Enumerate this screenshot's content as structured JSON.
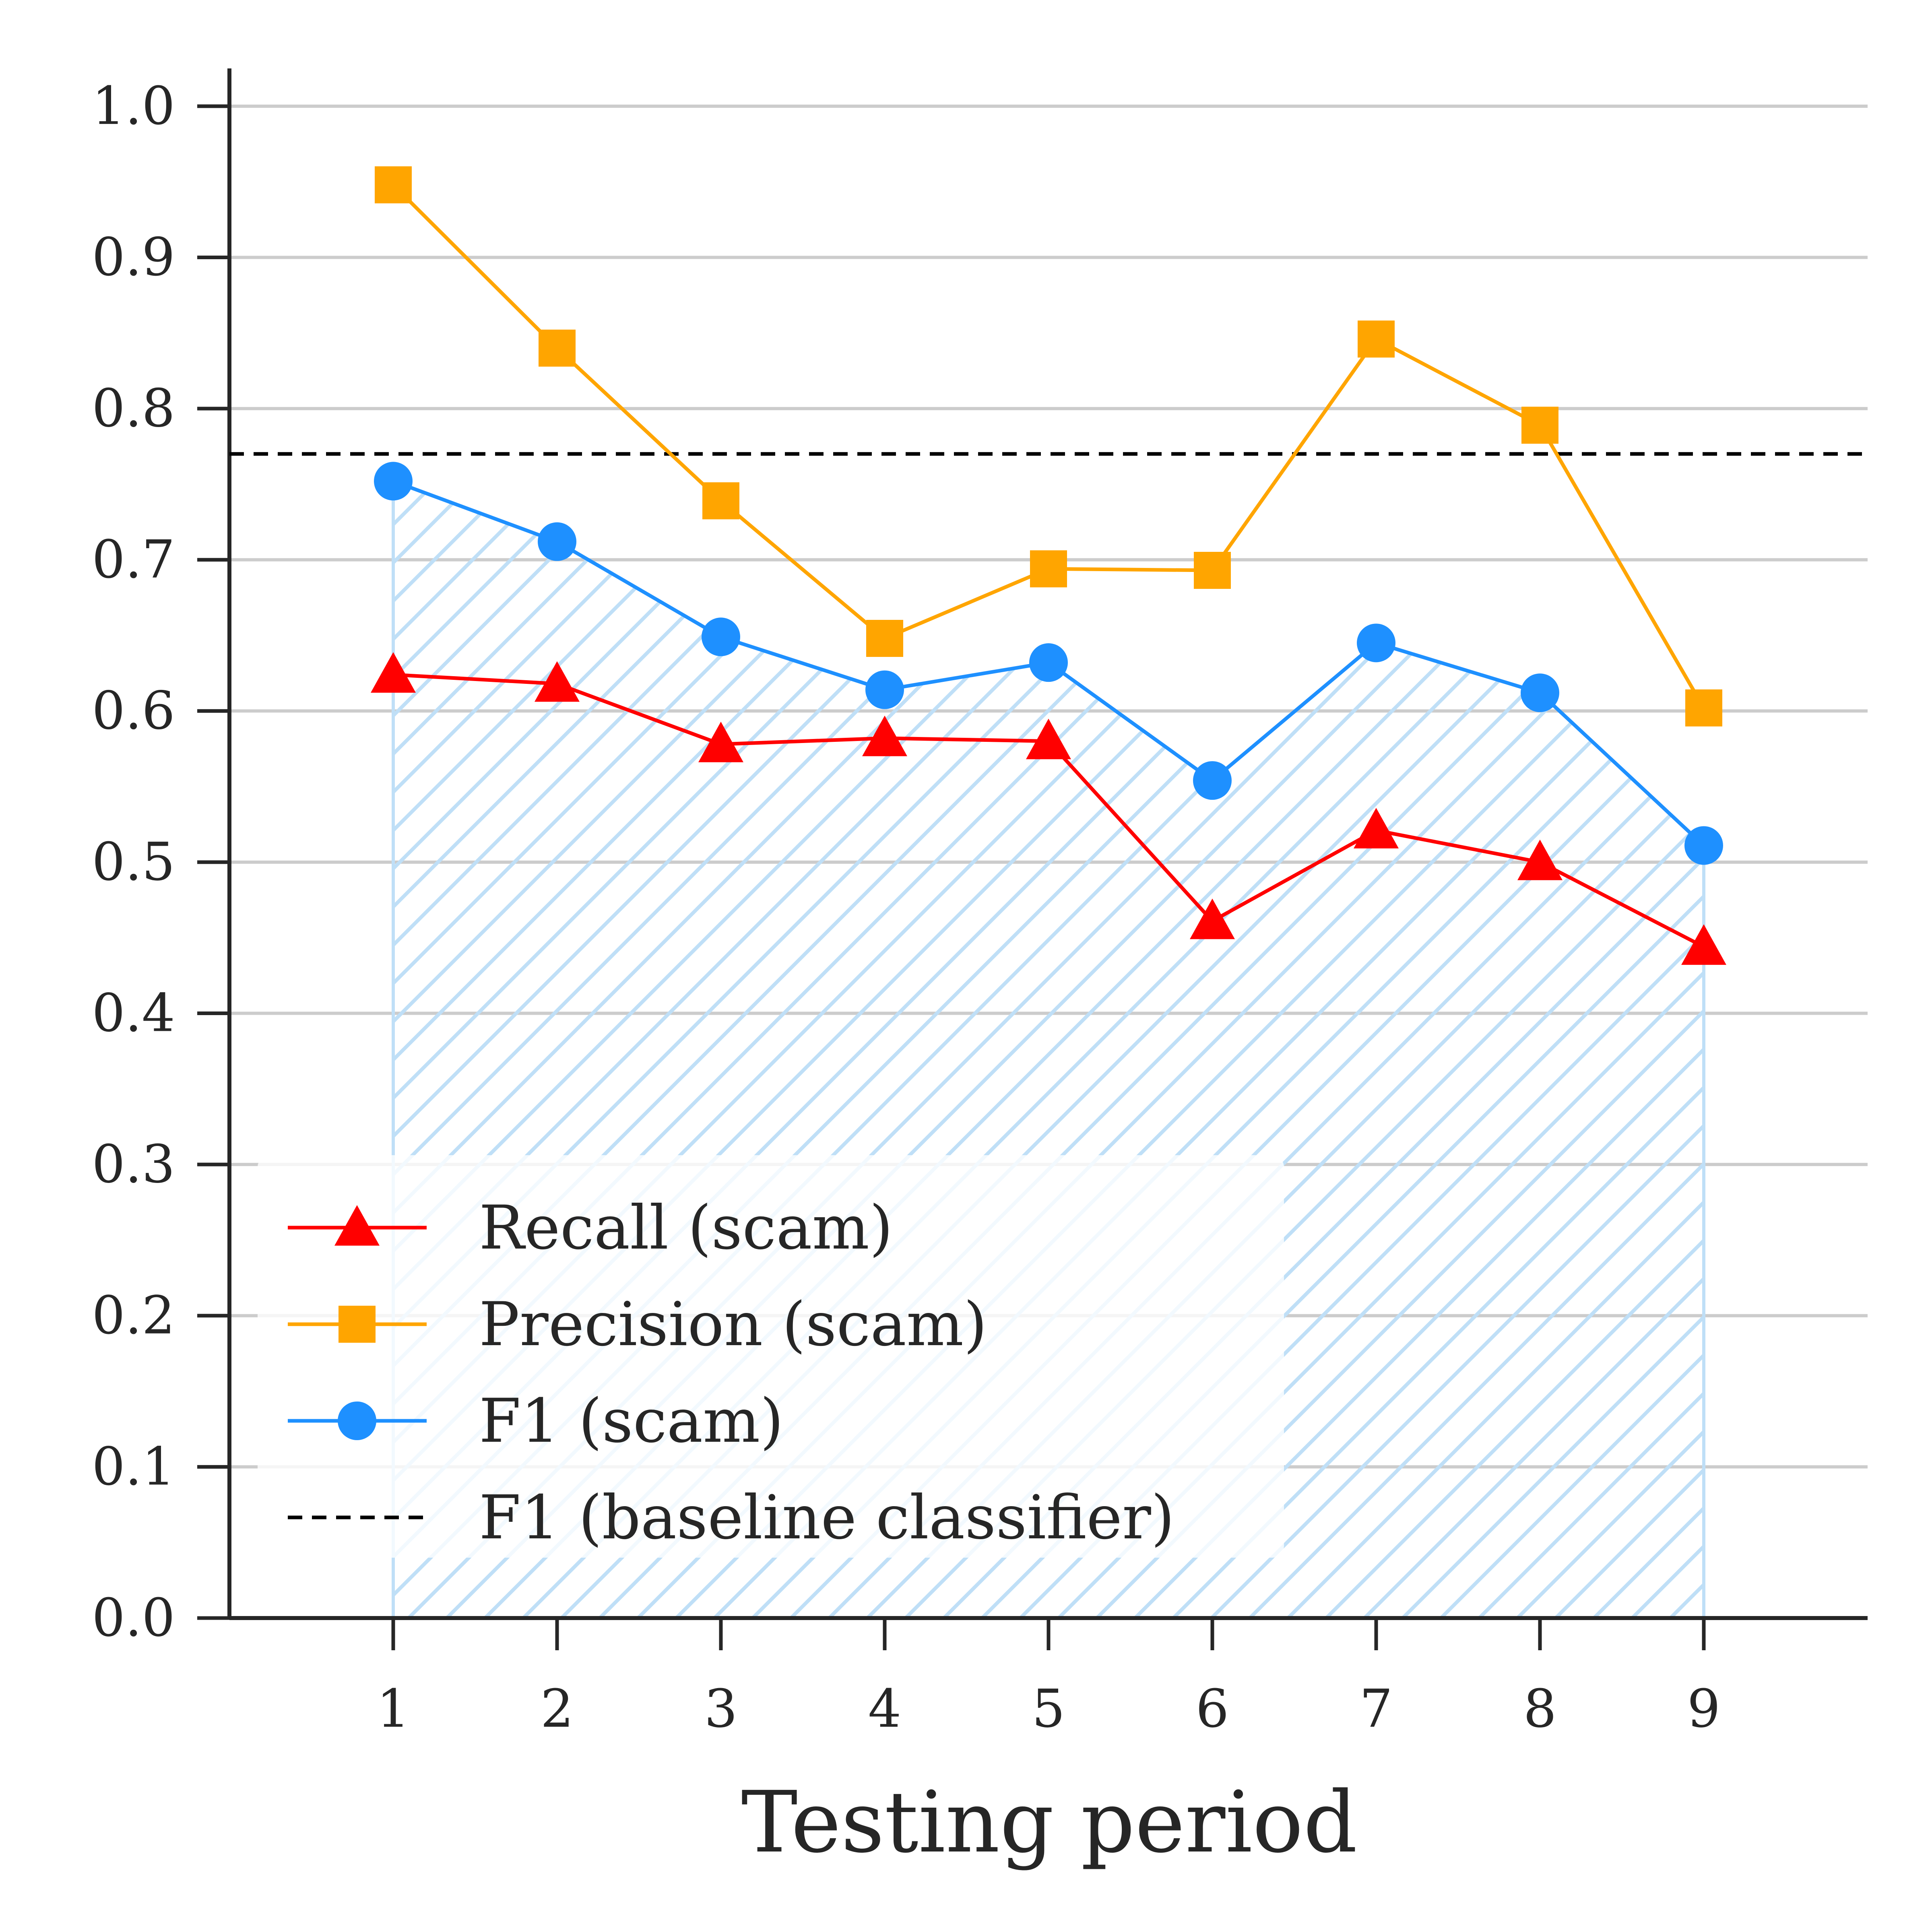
{
  "chart_data": {
    "type": "line",
    "title": "",
    "xlabel": "Testing period",
    "ylabel": "",
    "x": [
      1,
      2,
      3,
      4,
      5,
      6,
      7,
      8,
      9
    ],
    "xlim": [
      -0.0,
      10.0
    ],
    "ylim": [
      0.0,
      1.025
    ],
    "yticks": [
      "0.0",
      "0.1",
      "0.2",
      "0.3",
      "0.4",
      "0.5",
      "0.6",
      "0.7",
      "0.8",
      "0.9",
      "1.0"
    ],
    "xticks": [
      "1",
      "2",
      "3",
      "4",
      "5",
      "6",
      "7",
      "8",
      "9"
    ],
    "grid": "horizontal",
    "legend_position": "lower-left",
    "series": [
      {
        "name": "Recall (scam)",
        "color": "#ff0000",
        "marker": "triangle",
        "values": [
          0.624,
          0.618,
          0.578,
          0.582,
          0.58,
          0.461,
          0.521,
          0.5,
          0.444
        ]
      },
      {
        "name": "Precision (scam)",
        "color": "#ffa500",
        "marker": "square",
        "values": [
          0.948,
          0.84,
          0.739,
          0.648,
          0.694,
          0.693,
          0.846,
          0.789,
          0.602
        ]
      },
      {
        "name": "F1 (scam)",
        "color": "#1e90ff",
        "marker": "circle",
        "values": [
          0.752,
          0.712,
          0.649,
          0.614,
          0.632,
          0.554,
          0.645,
          0.612,
          0.511
        ],
        "fill_under": true
      }
    ],
    "baseline": {
      "name": "F1 (baseline classifier)",
      "value": 0.77,
      "color": "#000000",
      "style": "dashed"
    }
  }
}
